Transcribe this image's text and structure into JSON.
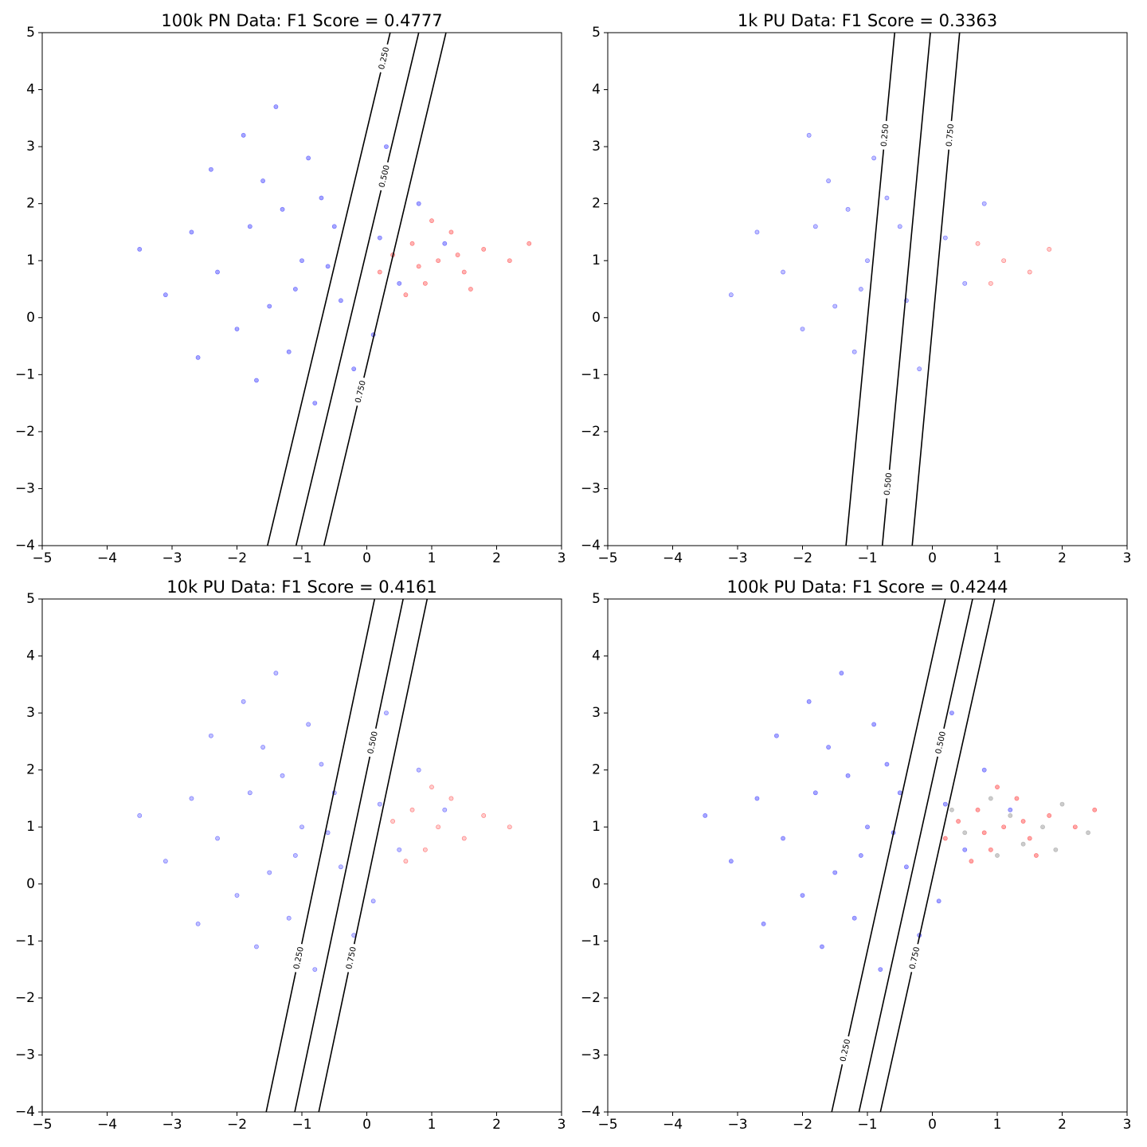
{
  "chart_data": [
    {
      "type": "scatter",
      "title": "100k PN Data: F1 Score = 0.4777",
      "xlim": [
        -5,
        3
      ],
      "ylim": [
        -4,
        5
      ],
      "xticks": [
        {
          "value": -5,
          "label": "−5"
        },
        {
          "value": -4,
          "label": "−4"
        },
        {
          "value": -3,
          "label": "−3"
        },
        {
          "value": -2,
          "label": "−2"
        },
        {
          "value": -1,
          "label": "−1"
        },
        0,
        1,
        2,
        3
      ],
      "yticks": [
        {
          "value": -4,
          "label": "−4"
        },
        {
          "value": -3,
          "label": "−3"
        },
        {
          "value": -2,
          "label": "−2"
        },
        {
          "value": -1,
          "label": "−1"
        },
        0,
        1,
        2,
        3,
        4,
        5
      ],
      "series": [
        {
          "color": "#0000ff",
          "x": [
            -1.0,
            -1.8,
            -0.4,
            -1.5,
            -0.7,
            -2.3,
            0.2,
            -1.2,
            -0.9,
            -2.0,
            0.5,
            -1.6,
            -0.2,
            -2.7,
            -1.1,
            0.8,
            -0.5,
            -1.9,
            -1.3,
            -3.1,
            0.1,
            -0.8,
            -2.4,
            -1.4,
            0.3,
            -3.5,
            -0.6,
            1.2,
            -1.7,
            -2.6
          ],
          "y": [
            1.0,
            1.6,
            0.3,
            0.2,
            2.1,
            0.8,
            1.4,
            -0.6,
            2.8,
            -0.2,
            0.6,
            2.4,
            -0.9,
            1.5,
            0.5,
            2.0,
            1.6,
            3.2,
            1.9,
            0.4,
            -0.3,
            -1.5,
            2.6,
            3.7,
            3.0,
            1.2,
            0.9,
            1.3,
            -1.1,
            -0.7
          ]
        },
        {
          "color": "#ff0000",
          "x": [
            1.1,
            0.7,
            1.5,
            0.9,
            1.8,
            0.4,
            1.3,
            2.2,
            0.6,
            1.0,
            1.6,
            2.5,
            0.2,
            1.4,
            0.8
          ],
          "y": [
            1.0,
            1.3,
            0.8,
            0.6,
            1.2,
            1.1,
            1.5,
            1.0,
            0.4,
            1.7,
            0.5,
            1.3,
            0.8,
            1.1,
            0.9
          ]
        }
      ],
      "contours": [
        {
          "level": {
            "value": 0.25,
            "label": "0.250"
          },
          "x": [
            -1.53,
            0.36
          ],
          "y": [
            -4,
            5
          ]
        },
        {
          "level": {
            "value": 0.5,
            "label": "0.500"
          },
          "x": [
            -1.09,
            0.8
          ],
          "y": [
            -4,
            5
          ]
        },
        {
          "level": {
            "value": 0.75,
            "label": "0.750"
          },
          "x": [
            -0.66,
            1.22
          ],
          "y": [
            -4,
            5
          ]
        }
      ]
    },
    {
      "type": "scatter",
      "title": "1k PU Data: F1 Score = 0.3363",
      "xlim": [
        -5,
        3
      ],
      "ylim": [
        -4,
        5
      ],
      "xticks": [
        {
          "value": -5,
          "label": "−5"
        },
        {
          "value": -4,
          "label": "−4"
        },
        {
          "value": -3,
          "label": "−3"
        },
        {
          "value": -2,
          "label": "−2"
        },
        {
          "value": -1,
          "label": "−1"
        },
        0,
        1,
        2,
        3
      ],
      "yticks": [
        {
          "value": -4,
          "label": "−4"
        },
        {
          "value": -3,
          "label": "−3"
        },
        {
          "value": -2,
          "label": "−2"
        },
        {
          "value": -1,
          "label": "−1"
        },
        0,
        1,
        2,
        3,
        4,
        5
      ],
      "series": [
        {
          "color": "#0000ff",
          "x": [
            -1.0,
            -1.8,
            -0.4,
            -1.5,
            -0.7,
            -2.3,
            0.2,
            -1.2,
            -0.9,
            -2.0,
            0.5,
            -1.6,
            -0.2,
            -2.7,
            -1.1,
            0.8,
            -0.5,
            -1.9,
            -1.3,
            -3.1
          ],
          "y": [
            1.0,
            1.6,
            0.3,
            0.2,
            2.1,
            0.8,
            1.4,
            -0.6,
            2.8,
            -0.2,
            0.6,
            2.4,
            -0.9,
            1.5,
            0.5,
            2.0,
            1.6,
            3.2,
            1.9,
            0.4
          ]
        },
        {
          "color": "#ff0000",
          "x": [
            1.1,
            0.7,
            1.5,
            0.9,
            1.8
          ],
          "y": [
            1.0,
            1.3,
            0.8,
            0.6,
            1.2
          ]
        }
      ],
      "contours": [
        {
          "level": {
            "value": 0.25,
            "label": "0.250"
          },
          "x": [
            -1.33,
            -0.58
          ],
          "y": [
            -4,
            5
          ]
        },
        {
          "level": {
            "value": 0.5,
            "label": "0.500"
          },
          "x": [
            -0.77,
            -0.03
          ],
          "y": [
            -4,
            5
          ]
        },
        {
          "level": {
            "value": 0.75,
            "label": "0.750"
          },
          "x": [
            -0.31,
            0.42
          ],
          "y": [
            -4,
            5
          ]
        }
      ]
    },
    {
      "type": "scatter",
      "title": "10k PU Data: F1 Score = 0.4161",
      "xlim": [
        -5,
        3
      ],
      "ylim": [
        -4,
        5
      ],
      "xticks": [
        {
          "value": -5,
          "label": "−5"
        },
        {
          "value": -4,
          "label": "−4"
        },
        {
          "value": -3,
          "label": "−3"
        },
        {
          "value": -2,
          "label": "−2"
        },
        {
          "value": -1,
          "label": "−1"
        },
        0,
        1,
        2,
        3
      ],
      "yticks": [
        {
          "value": -4,
          "label": "−4"
        },
        {
          "value": -3,
          "label": "−3"
        },
        {
          "value": -2,
          "label": "−2"
        },
        {
          "value": -1,
          "label": "−1"
        },
        0,
        1,
        2,
        3,
        4,
        5
      ],
      "series": [
        {
          "color": "#0000ff",
          "x": [
            -1.0,
            -1.8,
            -0.4,
            -1.5,
            -0.7,
            -2.3,
            0.2,
            -1.2,
            -0.9,
            -2.0,
            0.5,
            -1.6,
            -0.2,
            -2.7,
            -1.1,
            0.8,
            -0.5,
            -1.9,
            -1.3,
            -3.1,
            0.1,
            -0.8,
            -2.4,
            -1.4,
            0.3,
            -3.5,
            -0.6,
            1.2,
            -1.7,
            -2.6
          ],
          "y": [
            1.0,
            1.6,
            0.3,
            0.2,
            2.1,
            0.8,
            1.4,
            -0.6,
            2.8,
            -0.2,
            0.6,
            2.4,
            -0.9,
            1.5,
            0.5,
            2.0,
            1.6,
            3.2,
            1.9,
            0.4,
            -0.3,
            -1.5,
            2.6,
            3.7,
            3.0,
            1.2,
            0.9,
            1.3,
            -1.1,
            -0.7
          ]
        },
        {
          "color": "#ff0000",
          "x": [
            1.1,
            0.7,
            1.5,
            0.9,
            1.8,
            0.4,
            1.3,
            2.2,
            0.6,
            1.0
          ],
          "y": [
            1.0,
            1.3,
            0.8,
            0.6,
            1.2,
            1.1,
            1.5,
            1.0,
            0.4,
            1.7
          ]
        }
      ],
      "contours": [
        {
          "level": {
            "value": 0.25,
            "label": "0.250"
          },
          "x": [
            -1.55,
            0.12
          ],
          "y": [
            -4,
            5
          ]
        },
        {
          "level": {
            "value": 0.5,
            "label": "0.500"
          },
          "x": [
            -1.11,
            0.56
          ],
          "y": [
            -4,
            5
          ]
        },
        {
          "level": {
            "value": 0.75,
            "label": "0.750"
          },
          "x": [
            -0.74,
            0.93
          ],
          "y": [
            -4,
            5
          ]
        }
      ]
    },
    {
      "type": "scatter",
      "title": "100k PU Data: F1 Score = 0.4244",
      "xlim": [
        -5,
        3
      ],
      "ylim": [
        -4,
        5
      ],
      "xticks": [
        {
          "value": -5,
          "label": "−5"
        },
        {
          "value": -4,
          "label": "−4"
        },
        {
          "value": -3,
          "label": "−3"
        },
        {
          "value": -2,
          "label": "−2"
        },
        {
          "value": -1,
          "label": "−1"
        },
        0,
        1,
        2,
        3
      ],
      "yticks": [
        {
          "value": -4,
          "label": "−4"
        },
        {
          "value": -3,
          "label": "−3"
        },
        {
          "value": -2,
          "label": "−2"
        },
        {
          "value": -1,
          "label": "−1"
        },
        0,
        1,
        2,
        3,
        4,
        5
      ],
      "series": [
        {
          "color": "#0000ff",
          "x": [
            -1.0,
            -1.8,
            -0.4,
            -1.5,
            -0.7,
            -2.3,
            0.2,
            -1.2,
            -0.9,
            -2.0,
            0.5,
            -1.6,
            -0.2,
            -2.7,
            -1.1,
            0.8,
            -0.5,
            -1.9,
            -1.3,
            -3.1,
            0.1,
            -0.8,
            -2.4,
            -1.4,
            0.3,
            -3.5,
            -0.6,
            1.2,
            -1.7,
            -2.6
          ],
          "y": [
            1.0,
            1.6,
            0.3,
            0.2,
            2.1,
            0.8,
            1.4,
            -0.6,
            2.8,
            -0.2,
            0.6,
            2.4,
            -0.9,
            1.5,
            0.5,
            2.0,
            1.6,
            3.2,
            1.9,
            0.4,
            -0.3,
            -1.5,
            2.6,
            3.7,
            3.0,
            1.2,
            0.9,
            1.3,
            -1.1,
            -0.7
          ]
        },
        {
          "color": "#ff0000",
          "x": [
            1.1,
            0.7,
            1.5,
            0.9,
            1.8,
            0.4,
            1.3,
            2.2,
            0.6,
            1.0,
            1.6,
            2.5,
            0.2,
            1.4,
            0.8
          ],
          "y": [
            1.0,
            1.3,
            0.8,
            0.6,
            1.2,
            1.1,
            1.5,
            1.0,
            0.4,
            1.7,
            0.5,
            1.3,
            0.8,
            1.1,
            0.9
          ]
        },
        {
          "color": "#808080",
          "x": [
            1.2,
            0.5,
            1.7,
            2.0,
            0.9,
            1.4,
            2.4,
            0.3,
            1.0,
            1.9
          ],
          "y": [
            1.2,
            0.9,
            1.0,
            1.4,
            1.5,
            0.7,
            0.9,
            1.3,
            0.5,
            0.6
          ]
        }
      ],
      "contours": [
        {
          "level": {
            "value": 0.25,
            "label": "0.250"
          },
          "x": [
            -1.55,
            0.2
          ],
          "y": [
            -4,
            5
          ]
        },
        {
          "level": {
            "value": 0.5,
            "label": "0.500"
          },
          "x": [
            -1.13,
            0.62
          ],
          "y": [
            -4,
            5
          ]
        },
        {
          "level": {
            "value": 0.75,
            "label": "0.750"
          },
          "x": [
            -0.8,
            0.96
          ],
          "y": [
            -4,
            5
          ]
        }
      ]
    }
  ]
}
